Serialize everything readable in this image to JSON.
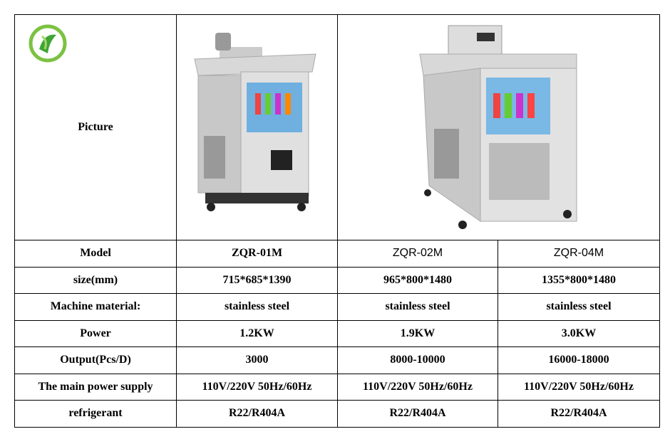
{
  "table": {
    "picture_label": "Picture",
    "rows": [
      [
        "Model",
        "ZQR-01M",
        "ZQR-02M",
        "ZQR-04M"
      ],
      [
        "size(mm)",
        "715*685*1390",
        "965*800*1480",
        "1355*800*1480"
      ],
      [
        "Machine material:",
        "stainless steel",
        "stainless steel",
        "stainless steel"
      ],
      [
        "Power",
        "1.2KW",
        "1.9KW",
        "3.0KW"
      ],
      [
        "Output(Pcs/D)",
        "3000",
        "8000-10000",
        "16000-18000"
      ],
      [
        "The main power supply",
        "110V/220V 50Hz/60Hz",
        "110V/220V 50Hz/60Hz",
        "110V/220V 50Hz/60Hz"
      ],
      [
        "refrigerant",
        "R22/R404A",
        "R22/R404A",
        "R22/R404A"
      ]
    ]
  }
}
